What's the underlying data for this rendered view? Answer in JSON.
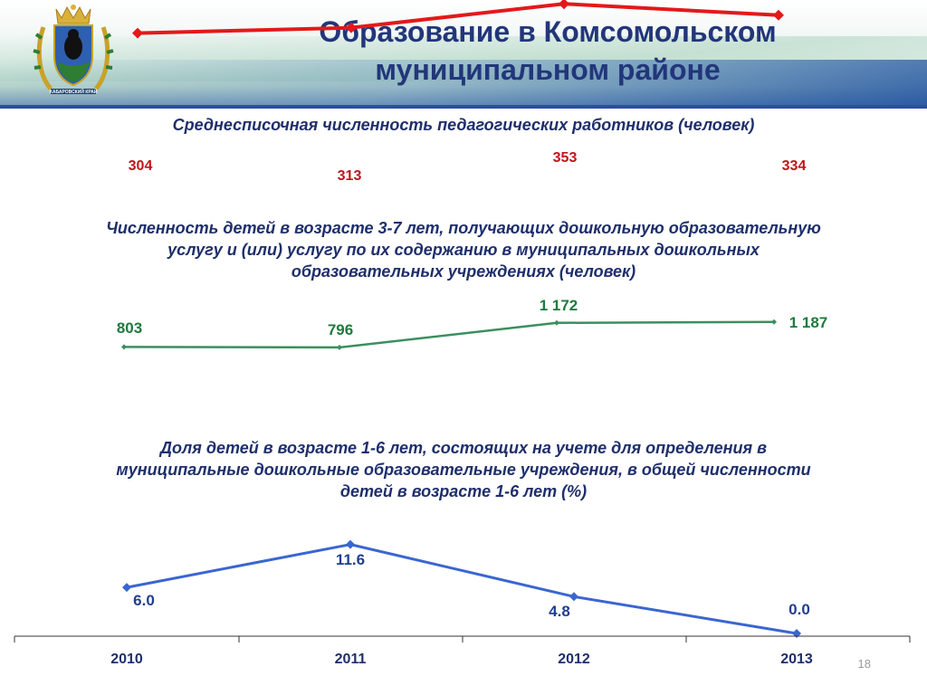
{
  "slide": {
    "title_line1": "Образование в Комсомольском",
    "title_line2": "муниципальном районе",
    "emblem_caption": "ХАБАРОВСКИЙ КРАЙ",
    "number": "18"
  },
  "colors": {
    "title": "#22367a",
    "teachers": "#e3191b",
    "children": "#3b8f5f",
    "queue": "#3a66d1"
  },
  "chart_data": [
    {
      "type": "line",
      "title": "Среднесписочная численность педагогических работников (человек)",
      "categories": [
        "2010",
        "2011",
        "2012",
        "2013"
      ],
      "values": [
        304,
        313,
        353,
        334
      ],
      "labels": [
        "304",
        "313",
        "353",
        "334"
      ],
      "color": "#e3191b",
      "marker": "diamond"
    },
    {
      "type": "line",
      "title_lines": [
        "Численность детей в возрасте 3-7 лет, получающих дошкольную образовательную",
        "услугу и (или) услугу по их содержанию в муниципальных дошкольных",
        "образовательных учреждениях (человек)"
      ],
      "categories": [
        "2010",
        "2011",
        "2012",
        "2013"
      ],
      "values": [
        803,
        796,
        1172,
        1187
      ],
      "labels": [
        "803",
        "796",
        "1 172",
        "1 187"
      ],
      "color": "#3b8f5f",
      "marker": "diamond"
    },
    {
      "type": "line",
      "title_lines": [
        "Доля детей в возрасте 1-6 лет, состоящих на учете для определения в",
        "муниципальные дошкольные образовательные учреждения, в общей численности",
        "детей в возрасте 1-6 лет (%)"
      ],
      "categories": [
        "2010",
        "2011",
        "2012",
        "2013"
      ],
      "values": [
        6.0,
        11.6,
        4.8,
        0.0
      ],
      "labels": [
        "6.0",
        "11.6",
        "4.8",
        "0.0"
      ],
      "color": "#3a66d1",
      "marker": "diamond"
    }
  ]
}
